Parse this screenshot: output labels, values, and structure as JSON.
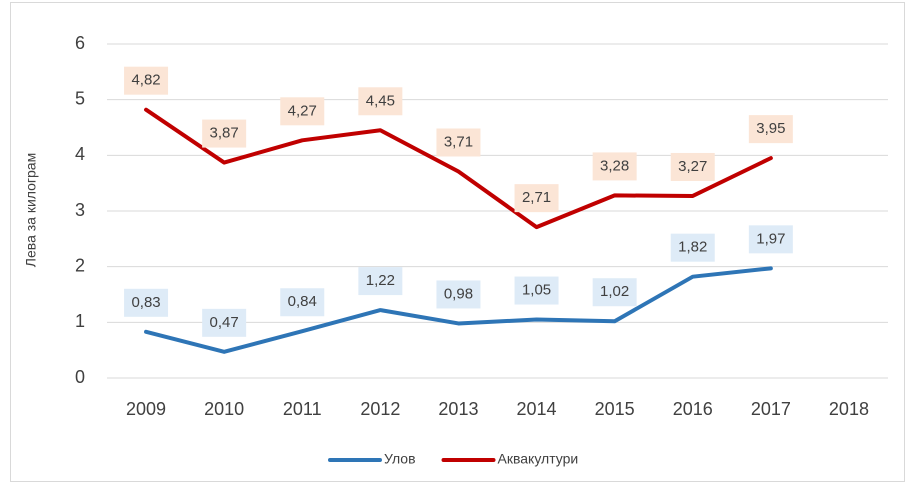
{
  "chart_data": {
    "type": "line",
    "y_label": "Лева  за килограм",
    "categories": [
      "2009",
      "2010",
      "2011",
      "2012",
      "2013",
      "2014",
      "2015",
      "2016",
      "2017",
      "2018"
    ],
    "series": [
      {
        "name": "Улов",
        "color": "#2e75b6",
        "label_bg": "#deebf7",
        "values": [
          0.83,
          0.47,
          0.84,
          1.22,
          0.98,
          1.05,
          1.02,
          1.82,
          1.97,
          null
        ],
        "value_labels": [
          "0,83",
          "0,47",
          "0,84",
          "1,22",
          "0,98",
          "1,05",
          "1,02",
          "1,82",
          "1,97",
          null
        ]
      },
      {
        "name": "Аквакултури",
        "color": "#c00000",
        "label_bg": "#fbe5d6",
        "values": [
          4.82,
          3.87,
          4.27,
          4.45,
          3.71,
          2.71,
          3.28,
          3.27,
          3.95,
          null
        ],
        "value_labels": [
          "4,82",
          "3,87",
          "4,27",
          "4,45",
          "3,71",
          "2,71",
          "3,28",
          "3,27",
          "3,95",
          null
        ]
      }
    ],
    "ylim": [
      0,
      6
    ],
    "yticks": [
      0,
      1,
      2,
      3,
      4,
      5,
      6
    ],
    "grid": true,
    "legend": "bottom"
  }
}
